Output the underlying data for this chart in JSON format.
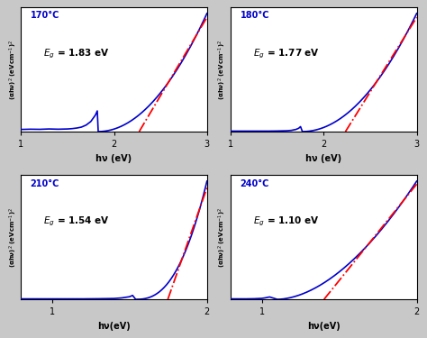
{
  "subplots": [
    {
      "temp": "170°C",
      "Eg": 1.83,
      "xlim": [
        1,
        3
      ],
      "ylim": [
        0,
        1.05
      ],
      "x_ticks": [
        1,
        2,
        3
      ],
      "rise_power": 2.0,
      "rise_scale": 1.0,
      "flat_x": [
        1.0,
        1.1,
        1.2,
        1.3,
        1.4,
        1.5,
        1.55,
        1.6,
        1.65,
        1.7,
        1.75,
        1.8,
        1.82
      ],
      "flat_y": [
        0.018,
        0.02,
        0.019,
        0.022,
        0.02,
        0.022,
        0.025,
        0.03,
        0.038,
        0.055,
        0.085,
        0.14,
        0.175
      ],
      "line_x1": 1.83,
      "line_x2": 2.85,
      "xlabel": "hν (eV)"
    },
    {
      "temp": "180°C",
      "Eg": 1.77,
      "xlim": [
        1,
        3
      ],
      "ylim": [
        0,
        1.05
      ],
      "x_ticks": [
        1,
        2,
        3
      ],
      "rise_power": 2.0,
      "rise_scale": 1.0,
      "flat_x": [
        1.0,
        1.1,
        1.2,
        1.3,
        1.4,
        1.5,
        1.6,
        1.65,
        1.7,
        1.73,
        1.75
      ],
      "flat_y": [
        0.004,
        0.004,
        0.004,
        0.004,
        0.004,
        0.005,
        0.007,
        0.01,
        0.018,
        0.028,
        0.042
      ],
      "line_x1": 1.77,
      "line_x2": 2.85,
      "xlabel": "hν (eV)"
    },
    {
      "temp": "210°C",
      "Eg": 1.54,
      "xlim": [
        0.8,
        2
      ],
      "ylim": [
        0,
        1.05
      ],
      "x_ticks": [
        1,
        2
      ],
      "rise_power": 2.5,
      "rise_scale": 1.0,
      "flat_x": [
        0.8,
        0.9,
        1.0,
        1.1,
        1.2,
        1.3,
        1.4,
        1.45,
        1.5,
        1.52
      ],
      "flat_y": [
        0.004,
        0.004,
        0.004,
        0.004,
        0.004,
        0.005,
        0.007,
        0.012,
        0.022,
        0.033
      ],
      "line_x1": 1.54,
      "line_x2": 1.85,
      "xlabel": "hν(eV)"
    },
    {
      "temp": "240°C",
      "Eg": 1.1,
      "xlim": [
        0.8,
        2
      ],
      "ylim": [
        0,
        1.05
      ],
      "x_ticks": [
        1,
        2
      ],
      "rise_power": 1.8,
      "rise_scale": 1.0,
      "flat_x": [
        0.8,
        0.85,
        0.9,
        0.95,
        1.0,
        1.02,
        1.05
      ],
      "flat_y": [
        0.004,
        0.004,
        0.004,
        0.005,
        0.008,
        0.012,
        0.02
      ],
      "line_x1": 1.1,
      "line_x2": 1.92,
      "xlabel": "hν(eV)"
    }
  ],
  "blue_color": "#0000CD",
  "red_color": "#FF0000",
  "fig_bg_color": "#c8c8c8",
  "ax_bg_color": "#ffffff",
  "ylabel": "(αhν)$^2$ (eVcm$^{-1}$)$^2$"
}
